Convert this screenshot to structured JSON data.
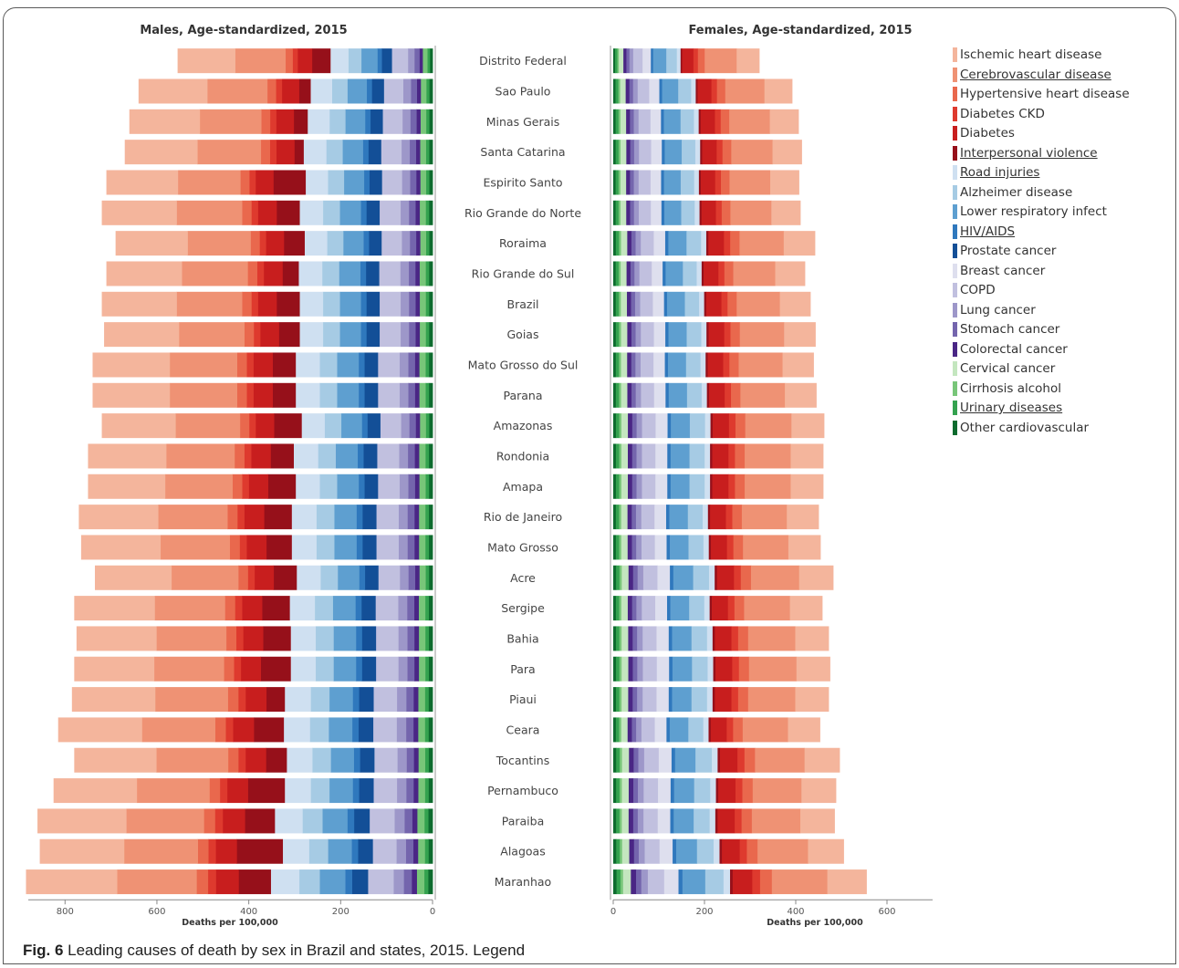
{
  "panels": {
    "males_title": "Males, Age-standardized, 2015",
    "females_title": "Females, Age-standardized, 2015",
    "axis_label": "Deaths per 100,000"
  },
  "caption": {
    "label": "Fig. 6",
    "text": " Leading causes of death by sex in Brazil and states, 2015. Legend"
  },
  "legend": [
    {
      "label": "Ischemic heart disease",
      "color": "#f4b59c",
      "underline": false
    },
    {
      "label": "Cerebrovascular disease",
      "color": "#ef9274",
      "underline": true
    },
    {
      "label": "Hypertensive heart disease",
      "color": "#e9684d",
      "underline": false
    },
    {
      "label": "Diabetes CKD",
      "color": "#de3a2e",
      "underline": false
    },
    {
      "label": "Diabetes",
      "color": "#c81e1e",
      "underline": false
    },
    {
      "label": "Interpersonal violence",
      "color": "#96101a",
      "underline": true
    },
    {
      "label": "Road injuries",
      "color": "#cfe0f1",
      "underline": true
    },
    {
      "label": "Alzheimer disease",
      "color": "#a6cbe4",
      "underline": false
    },
    {
      "label": "Lower respiratory infect",
      "color": "#5e9fd0",
      "underline": false
    },
    {
      "label": "HIV/AIDS",
      "color": "#2f78bd",
      "underline": true
    },
    {
      "label": "Prostate cancer",
      "color": "#134f97",
      "underline": false
    },
    {
      "label": "Breast cancer",
      "color": "#dedfee",
      "underline": false
    },
    {
      "label": "COPD",
      "color": "#c1c0df",
      "underline": false
    },
    {
      "label": "Lung cancer",
      "color": "#9d97c9",
      "underline": false
    },
    {
      "label": "Stomach cancer",
      "color": "#7465ad",
      "underline": false
    },
    {
      "label": "Colorectal cancer",
      "color": "#4a2685",
      "underline": false
    },
    {
      "label": "Cervical cancer",
      "color": "#c4e6bf",
      "underline": false
    },
    {
      "label": "Cirrhosis alcohol",
      "color": "#78c679",
      "underline": false
    },
    {
      "label": "Urinary diseases",
      "color": "#34a24f",
      "underline": true
    },
    {
      "label": "Other cardiovascular",
      "color": "#0d6b2e",
      "underline": false
    }
  ],
  "chart_data": {
    "type": "bar",
    "stacked": true,
    "orientation": "horizontal",
    "categories": [
      "Distrito Federal",
      "Sao Paulo",
      "Minas Gerais",
      "Santa Catarina",
      "Espirito Santo",
      "Rio Grande do Norte",
      "Roraima",
      "Rio Grande do Sul",
      "Brazil",
      "Goias",
      "Mato Grosso do Sul",
      "Parana",
      "Amazonas",
      "Rondonia",
      "Amapa",
      "Rio de Janeiro",
      "Mato Grosso",
      "Acre",
      "Sergipe",
      "Bahia",
      "Para",
      "Piaui",
      "Ceara",
      "Tocantins",
      "Pernambuco",
      "Paraiba",
      "Alagoas",
      "Maranhao"
    ],
    "males": {
      "xlabel": "Deaths per 100,000",
      "xlim": [
        0,
        880
      ],
      "xticks": [
        0,
        200,
        400,
        600,
        800
      ],
      "total": [
        555,
        640,
        660,
        670,
        710,
        720,
        690,
        710,
        720,
        715,
        740,
        740,
        720,
        750,
        750,
        770,
        765,
        735,
        780,
        775,
        780,
        785,
        815,
        780,
        825,
        860,
        855,
        885
      ],
      "violence": [
        40,
        25,
        30,
        20,
        70,
        50,
        45,
        35,
        50,
        45,
        50,
        50,
        60,
        50,
        60,
        60,
        55,
        50,
        60,
        60,
        65,
        40,
        65,
        45,
        80,
        65,
        100,
        70
      ]
    },
    "females": {
      "xlabel": "Deaths per 100,000",
      "xlim": [
        0,
        700
      ],
      "xticks": [
        0,
        200,
        400,
        600
      ],
      "total": [
        320,
        392,
        406,
        413,
        407,
        410,
        442,
        420,
        432,
        443,
        439,
        445,
        462,
        460,
        460,
        450,
        454,
        482,
        458,
        472,
        475,
        472,
        453,
        496,
        488,
        485,
        505,
        555
      ]
    },
    "segment_order": [
      "Other cardiovascular",
      "Urinary diseases",
      "Cirrhosis alcohol",
      "Cervical cancer",
      "Colorectal cancer",
      "Stomach cancer",
      "Lung cancer",
      "COPD",
      "Breast cancer",
      "Prostate cancer",
      "HIV/AIDS",
      "Lower respiratory infect",
      "Alzheimer disease",
      "Road injuries",
      "Interpersonal violence",
      "Diabetes",
      "Diabetes CKD",
      "Hypertensive heart disease",
      "Cerebrovascular disease",
      "Ischemic heart disease"
    ]
  }
}
